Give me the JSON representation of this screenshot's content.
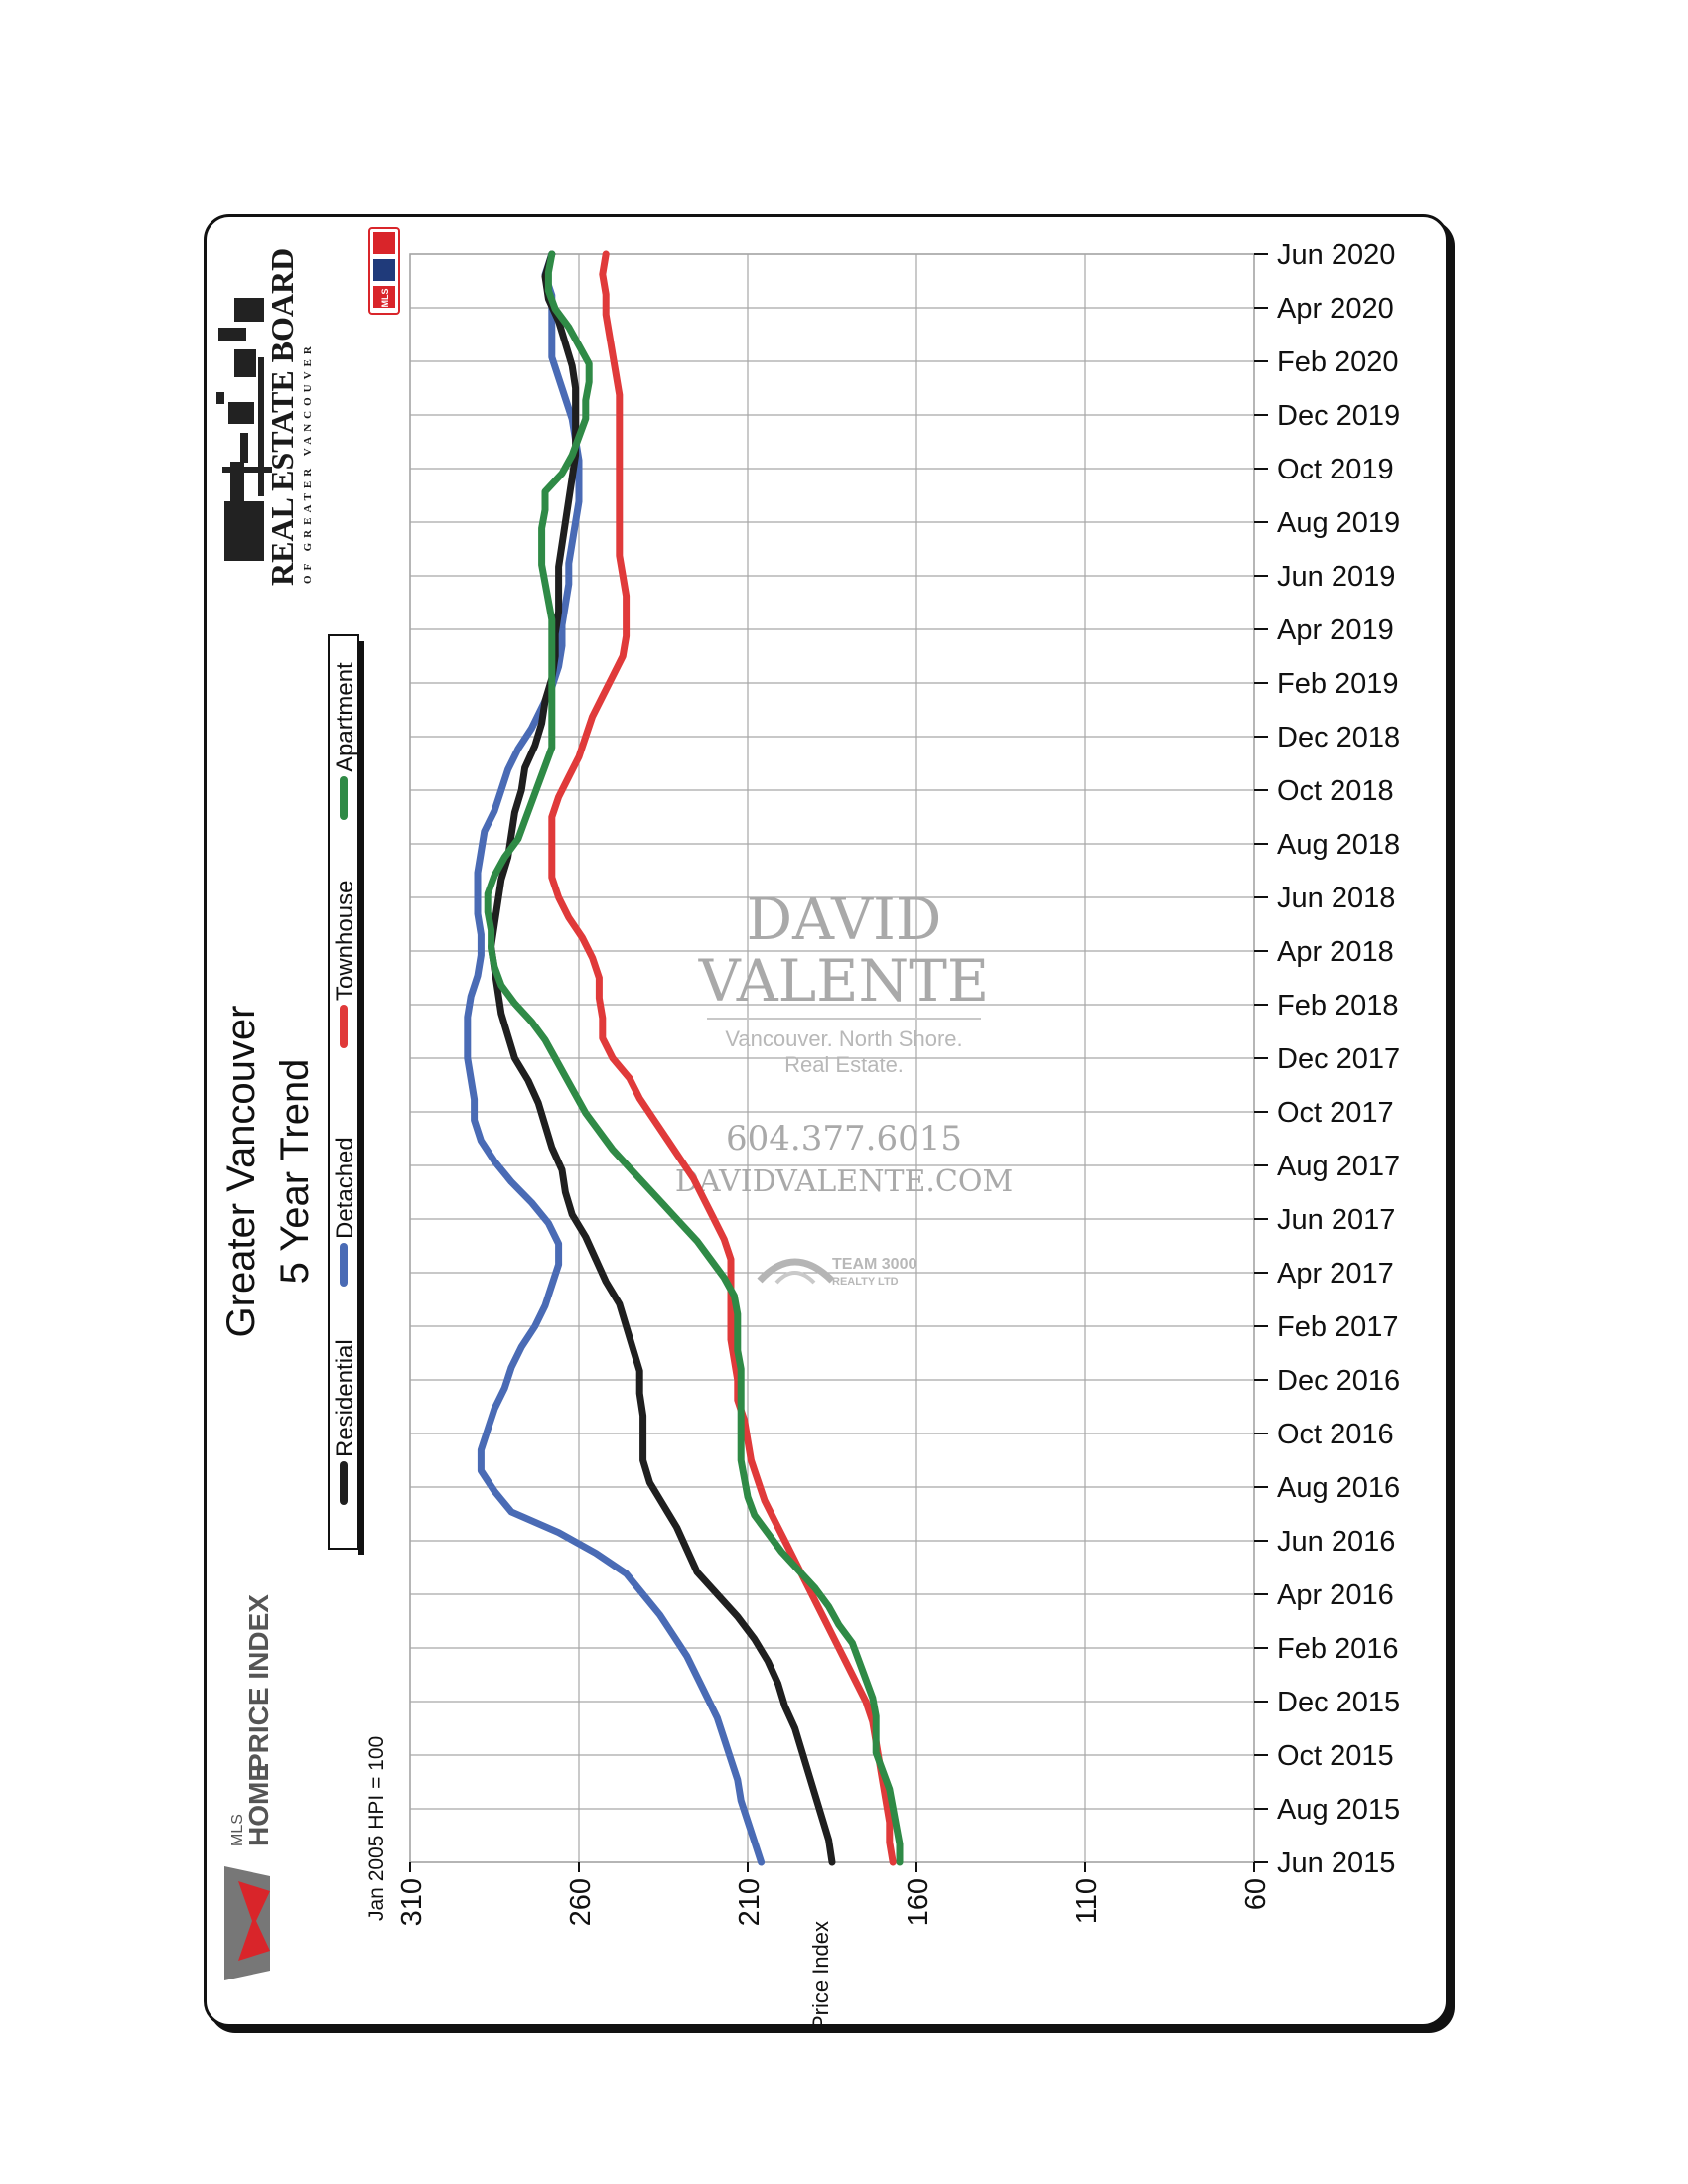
{
  "colors": {
    "residential": "#1f1f1f",
    "detached": "#4a6bb5",
    "townhouse": "#e03a3a",
    "apartment": "#2f8a46",
    "grid": "#a7a7a7",
    "watermark": "#a9a9a9"
  },
  "title": {
    "line1": "Greater Vancouver",
    "line2": "5 Year Trend"
  },
  "legend": [
    {
      "key": "residential",
      "label": "Residential"
    },
    {
      "key": "detached",
      "label": "Detached"
    },
    {
      "key": "townhouse",
      "label": "Townhouse"
    },
    {
      "key": "apartment",
      "label": "Apartment"
    }
  ],
  "branding": {
    "rebgv_line1": "REAL ESTATE BOARD",
    "rebgv_line2": "OF GREATER VANCOUVER",
    "mls_small": "MLS",
    "hpi_line1": "HOME",
    "hpi_line2": "PRICE INDEX",
    "mls_logo_text": "MLS"
  },
  "watermark": {
    "name1": "DAVID",
    "name2": "VALENTE",
    "tagline1": "Vancouver. North Shore.",
    "tagline2": "Real Estate.",
    "phone": "604.377.6015",
    "website": "DAVIDVALENTE.COM",
    "team1": "TEAM 3000",
    "team2": "REALTY LTD"
  },
  "chart_data": {
    "type": "line",
    "title": "Greater Vancouver 5 Year Trend",
    "orientation": "rotated-90",
    "subtitle": "Jan 2005 HPI = 100",
    "xlabel": "",
    "ylabel": "Price Index",
    "ylim": [
      60,
      310
    ],
    "yticks": [
      "310",
      "260",
      "210",
      "160",
      "110",
      "60"
    ],
    "ytick_values": [
      310,
      260,
      210,
      160,
      110,
      60
    ],
    "tick_labels": [
      "Jun 2015",
      "Aug 2015",
      "Oct 2015",
      "Dec 2015",
      "Feb 2016",
      "Apr 2016",
      "Jun 2016",
      "Aug 2016",
      "Oct 2016",
      "Dec 2016",
      "Feb 2017",
      "Apr 2017",
      "Jun 2017",
      "Aug 2017",
      "Oct 2017",
      "Dec 2017",
      "Feb 2018",
      "Apr 2018",
      "Jun 2018",
      "Aug 2018",
      "Oct 2018",
      "Dec 2018",
      "Feb 2019",
      "Apr 2019",
      "Jun 2019",
      "Aug 2019",
      "Oct 2019",
      "Dec 2019",
      "Feb 2020",
      "Apr 2020",
      "Jun 2020"
    ],
    "grid": true,
    "legend_position": "left",
    "series": [
      {
        "name": "Residential",
        "key": "residential",
        "values": [
          185,
          186,
          188,
          190,
          192,
          194,
          196,
          199,
          201,
          204,
          208,
          213,
          219,
          225,
          228,
          231,
          235,
          239,
          241,
          241,
          241,
          242,
          242,
          244,
          246,
          248,
          252,
          255,
          258,
          262,
          264,
          265,
          268,
          270,
          272,
          275,
          279,
          281,
          283,
          284,
          285,
          286,
          285,
          284,
          283,
          281,
          280,
          279,
          277,
          276,
          273,
          271,
          270,
          268,
          267,
          267,
          266,
          266,
          266,
          265,
          264,
          263,
          262,
          261,
          261,
          261,
          261,
          262,
          264,
          266,
          269,
          270,
          268
        ]
      },
      {
        "name": "Detached",
        "key": "detached",
        "values": [
          206,
          208,
          210,
          212,
          213,
          215,
          217,
          219,
          222,
          225,
          228,
          232,
          236,
          241,
          246,
          255,
          266,
          280,
          285,
          289,
          289,
          287,
          285,
          282,
          280,
          277,
          273,
          270,
          268,
          266,
          266,
          269,
          274,
          280,
          285,
          289,
          291,
          291,
          292,
          293,
          293,
          293,
          292,
          290,
          289,
          289,
          290,
          290,
          290,
          289,
          288,
          285,
          283,
          281,
          278,
          274,
          271,
          268,
          266,
          265,
          265,
          264,
          263,
          263,
          262,
          261,
          260,
          260,
          260,
          261,
          262,
          264,
          266,
          268,
          268,
          268,
          268,
          270,
          268
        ]
      },
      {
        "name": "Townhouse",
        "key": "townhouse",
        "values": [
          167,
          168,
          168,
          169,
          170,
          171,
          172,
          173,
          175,
          178,
          181,
          184,
          187,
          190,
          193,
          196,
          199,
          202,
          205,
          207,
          209,
          210,
          211,
          213,
          213,
          214,
          215,
          215,
          215,
          215,
          215,
          217,
          220,
          223,
          226,
          230,
          234,
          238,
          242,
          245,
          250,
          253,
          253,
          254,
          254,
          256,
          259,
          263,
          266,
          268,
          268,
          268,
          268,
          266,
          263,
          260,
          258,
          256,
          253,
          250,
          247,
          246,
          246,
          246,
          247,
          248,
          248,
          248,
          248,
          248,
          248,
          248,
          248,
          248,
          249,
          250,
          251,
          252,
          252,
          253,
          252
        ]
      },
      {
        "name": "Apartment",
        "key": "apartment",
        "values": [
          165,
          165,
          166,
          167,
          168,
          170,
          172,
          172,
          172,
          173,
          175,
          177,
          179,
          183,
          186,
          190,
          195,
          200,
          204,
          208,
          210,
          211,
          212,
          212,
          212,
          212,
          212,
          212,
          213,
          213,
          213,
          214,
          217,
          221,
          225,
          230,
          235,
          240,
          245,
          250,
          254,
          258,
          261,
          264,
          267,
          270,
          274,
          279,
          283,
          285,
          286,
          286,
          287,
          287,
          285,
          282,
          278,
          276,
          274,
          272,
          270,
          268,
          268,
          268,
          268,
          268,
          268,
          268,
          268,
          269,
          270,
          271,
          271,
          271,
          270,
          270,
          265,
          262,
          260,
          258,
          258,
          257,
          257,
          260,
          263,
          267,
          269,
          269,
          268
        ]
      }
    ]
  }
}
